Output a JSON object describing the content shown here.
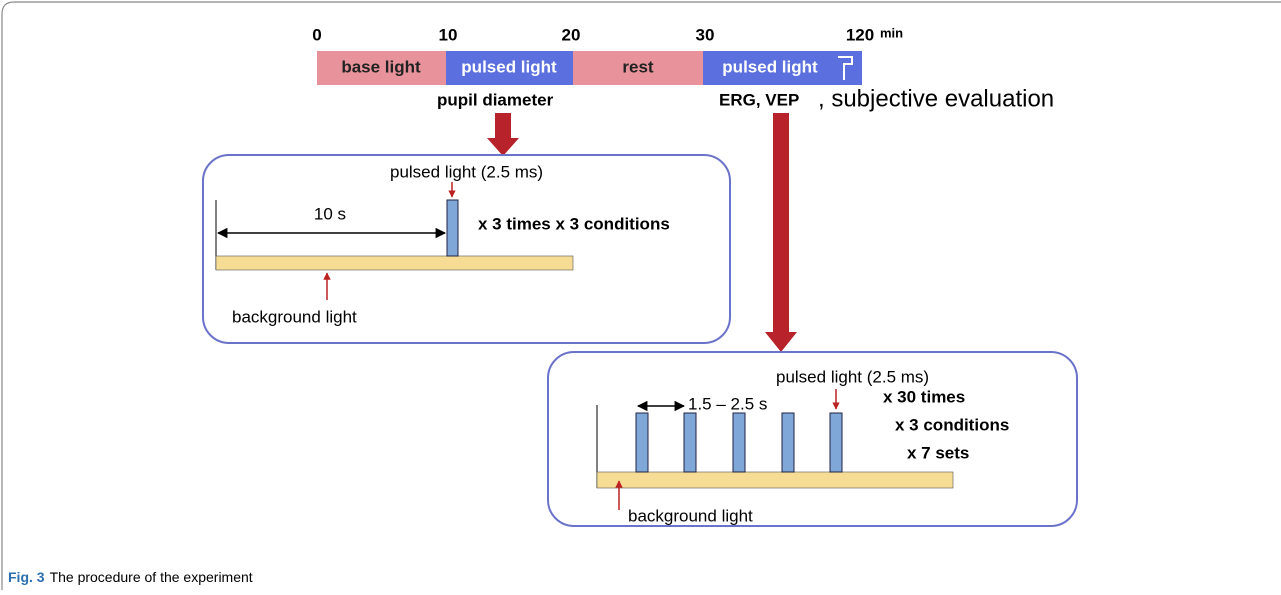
{
  "timeline": {
    "ticks": [
      "0",
      "10",
      "20",
      "30",
      "120"
    ],
    "unit": "min",
    "segments": [
      "base light",
      "pulsed light",
      "rest",
      "pulsed light"
    ]
  },
  "measures": {
    "pupil": "pupil diameter",
    "erg": "ERG, VEP",
    "subjective": ", subjective evaluation"
  },
  "box1": {
    "pulse": "pulsed light (2.5 ms)",
    "interval": "10 s",
    "repeat": "x 3 times x 3 conditions",
    "background": "background light"
  },
  "box2": {
    "pulse": "pulsed light (2.5 ms)",
    "interval": "1.5 – 2.5 s",
    "repeat": [
      "x 30 times",
      "x 3 conditions",
      "x 7 sets"
    ],
    "background": "background light"
  },
  "caption": {
    "label": "Fig. 3",
    "text": "The procedure of the experiment"
  }
}
